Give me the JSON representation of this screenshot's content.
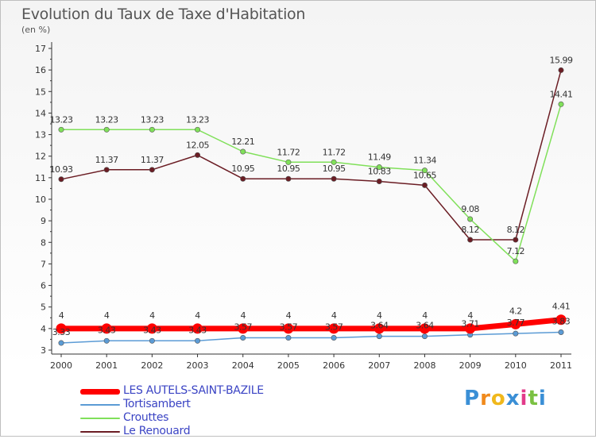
{
  "title": "Evolution du Taux de Taxe d'Habitation",
  "unit_label": "(en %)",
  "logo": {
    "letters": [
      "P",
      "r",
      "o",
      "x",
      "i",
      "t",
      "i"
    ],
    "colors": [
      "#3a8fd6",
      "#f08a1c",
      "#f0b81c",
      "#3a8fd6",
      "#e23b8a",
      "#7bc142",
      "#3a8fd6"
    ]
  },
  "chart_data": {
    "type": "line",
    "x": [
      "2000",
      "2001",
      "2002",
      "2003",
      "2004",
      "2005",
      "2006",
      "2007",
      "2008",
      "2009",
      "2010",
      "2011"
    ],
    "ylim": [
      3,
      17
    ],
    "yticks": [
      "3",
      "4",
      "5",
      "6",
      "7",
      "8",
      "9",
      "10",
      "11",
      "12",
      "13",
      "14",
      "15",
      "16",
      "17"
    ],
    "grid": false,
    "legend_position": "bottom-left",
    "series": [
      {
        "name": "LES AUTELS-SAINT-BAZILE",
        "color": "#ff0000",
        "values": [
          4,
          4,
          4,
          4,
          4,
          4,
          4,
          4,
          4,
          4,
          4.2,
          4.41
        ],
        "labels": [
          "4",
          "4",
          "4",
          "4",
          "4",
          "4",
          "4",
          "4",
          "4",
          "4",
          "4.2",
          "4.41"
        ]
      },
      {
        "name": "Tortisambert",
        "color": "#5b9bd5",
        "values": [
          3.33,
          3.43,
          3.43,
          3.43,
          3.57,
          3.57,
          3.57,
          3.64,
          3.64,
          3.71,
          3.77,
          3.83
        ],
        "labels": [
          "3.33",
          "3.43",
          "3.43",
          "3.43",
          "3.57",
          "3.57",
          "3.57",
          "3.64",
          "3.64",
          "3.71",
          "3.77",
          "3.83"
        ]
      },
      {
        "name": "Crouttes",
        "color": "#80e05a",
        "values": [
          13.23,
          13.23,
          13.23,
          13.23,
          12.21,
          11.72,
          11.72,
          11.49,
          11.34,
          9.08,
          7.12,
          14.41
        ],
        "labels": [
          "13.23",
          "13.23",
          "13.23",
          "13.23",
          "12.21",
          "11.72",
          "11.72",
          "11.49",
          "11.34",
          "9.08",
          "7.12",
          "14.41"
        ]
      },
      {
        "name": "Le Renouard",
        "color": "#6b1d24",
        "values": [
          10.93,
          11.37,
          11.37,
          12.05,
          10.95,
          10.95,
          10.95,
          10.83,
          10.65,
          8.12,
          8.12,
          15.99
        ],
        "labels": [
          "10.93",
          "11.37",
          "11.37",
          "12.05",
          "10.95",
          "10.95",
          "10.95",
          "10.83",
          "10.65",
          "8.12",
          "8.12",
          "15.99"
        ]
      }
    ]
  }
}
